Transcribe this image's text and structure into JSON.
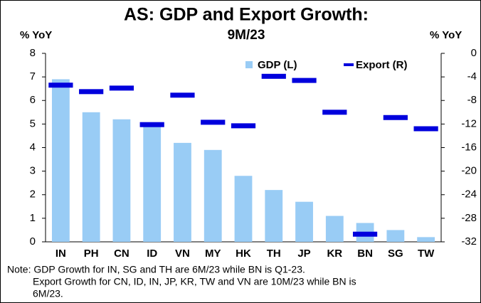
{
  "chart_data": {
    "type": "bar_marker",
    "title": [
      "AS: GDP and Export Growth:",
      "9M/23"
    ],
    "y_label": "% YoY",
    "y2_label": "% YoY",
    "categories": [
      "IN",
      "PH",
      "CN",
      "ID",
      "VN",
      "MY",
      "HK",
      "TH",
      "JP",
      "KR",
      "BN",
      "SG",
      "TW"
    ],
    "series": [
      {
        "name": "GDP (L)",
        "color": "#99ccf5",
        "values": [
          6.9,
          5.5,
          5.2,
          5.0,
          4.2,
          3.9,
          2.8,
          2.2,
          1.7,
          1.1,
          0.8,
          0.5,
          0.2
        ]
      },
      {
        "name": "Export (R)",
        "color": "#0000dd",
        "axis": "y2",
        "values": [
          -5.4,
          -6.5,
          -5.9,
          -12.1,
          -7.1,
          -11.7,
          -12.3,
          -3.9,
          -4.6,
          -10.0,
          -30.7,
          -10.9,
          -12.8
        ]
      }
    ],
    "ylim": [
      0,
      8
    ],
    "yticks": [
      0,
      1,
      2,
      3,
      4,
      5,
      6,
      7,
      8
    ],
    "y2lim": [
      -32,
      0
    ],
    "y2ticks": [
      0,
      -4,
      -8,
      -12,
      -16,
      -20,
      -24,
      -28,
      -32
    ],
    "grid": false,
    "legend": "top",
    "note": [
      "Note: GDP Growth for IN, SG and TH are 6M/23 while BN is Q1-23.",
      "Export Growth for CN, ID, IN, JP, KR, TW and VN are 10M/23 while BN is",
      "6M/23."
    ]
  }
}
